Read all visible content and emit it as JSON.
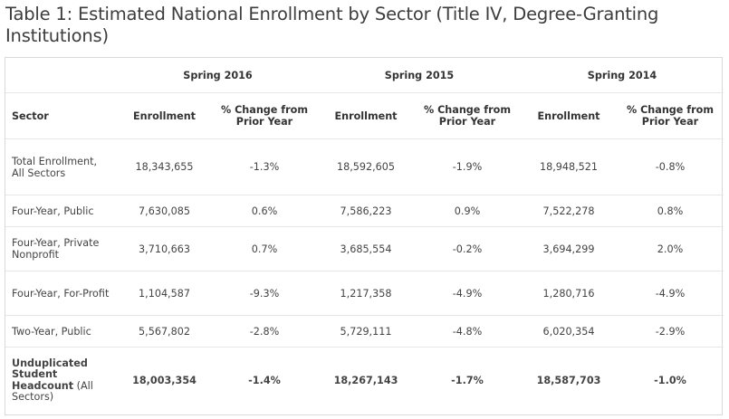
{
  "title": "Table 1: Estimated National Enrollment by Sector (Title IV, Degree-Granting Institutions)",
  "years": [
    "Spring 2016",
    "Spring 2015",
    "Spring 2014"
  ],
  "headers": {
    "sector": "Sector",
    "enrollment": "Enrollment",
    "change": "% Change from Prior Year"
  },
  "rows": [
    {
      "sector": "Total Enrollment, All Sectors",
      "values": [
        "18,343,655",
        "-1.3%",
        "18,592,605",
        "-1.9%",
        "18,948,521",
        "-0.8%"
      ]
    },
    {
      "sector": "Four-Year, Public",
      "values": [
        "7,630,085",
        "0.6%",
        "7,586,223",
        "0.9%",
        "7,522,278",
        "0.8%"
      ]
    },
    {
      "sector": "Four-Year, Private Nonprofit",
      "values": [
        "3,710,663",
        "0.7%",
        "3,685,554",
        "-0.2%",
        "3,694,299",
        "2.0%"
      ]
    },
    {
      "sector": "Four-Year, For-Profit",
      "values": [
        "1,104,587",
        "-9.3%",
        "1,217,358",
        "-4.9%",
        "1,280,716",
        "-4.9%"
      ]
    },
    {
      "sector": "Two-Year, Public",
      "values": [
        "5,567,802",
        "-2.8%",
        "5,729,111",
        "-4.8%",
        "6,020,354",
        "-2.9%"
      ]
    }
  ],
  "total": {
    "sector_bold": "Unduplicated Student Headcount",
    "sector_normal": " (All Sectors)",
    "values": [
      "18,003,354",
      "-1.4%",
      "18,267,143",
      "-1.7%",
      "18,587,703",
      "-1.0%"
    ]
  }
}
